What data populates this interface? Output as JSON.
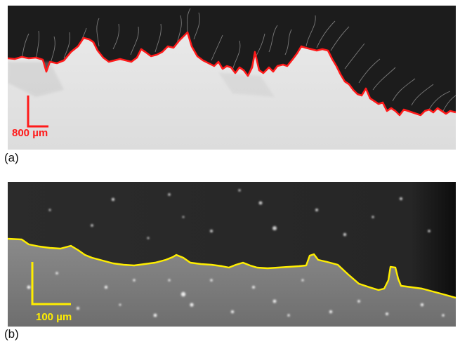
{
  "panels": [
    {
      "label": "(a)",
      "scale_bar": {
        "text": "800 µm"
      },
      "trace_color": "#ff1a1a",
      "background": "grayscale micrograph: dark upper region with filamentous strands, bright lower region, jagged boundary"
    },
    {
      "label": "(b)",
      "scale_bar": {
        "text": "100 µm"
      },
      "trace_color": "#ffee00",
      "background": "grayscale fluorescence micrograph: dark upper region with sparse bright specks, brighter speckled lower region"
    }
  ]
}
